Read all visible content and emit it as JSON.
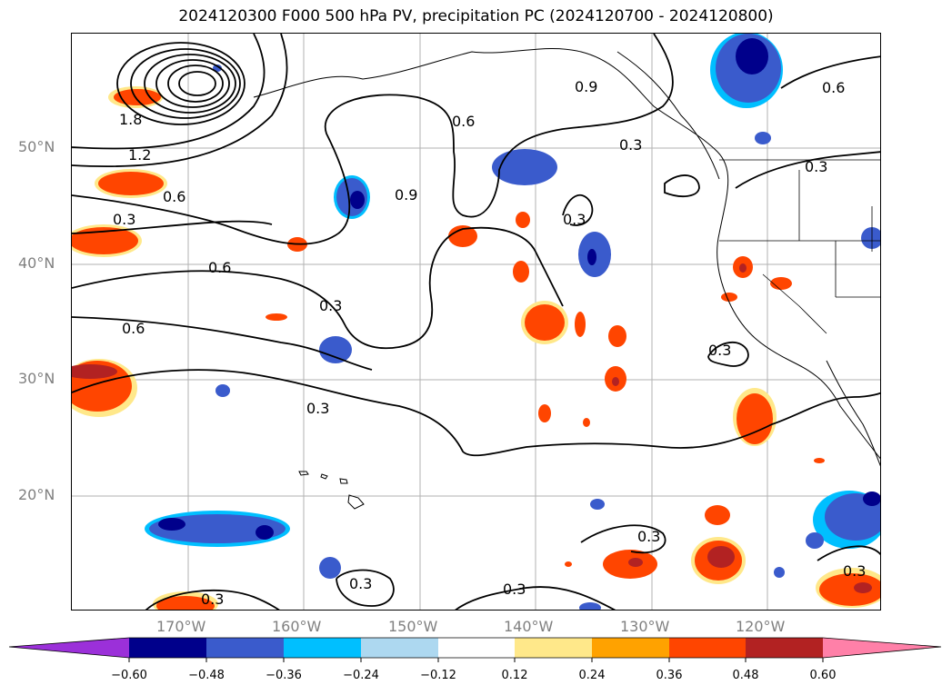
{
  "title": "2024120300 F000 500 hPa PV, precipitation PC (2024120700 - 2024120800)",
  "map": {
    "lat_labels": [
      "50°N",
      "40°N",
      "30°N",
      "20°N"
    ],
    "lon_labels": [
      "170°W",
      "160°W",
      "150°W",
      "140°W",
      "130°W",
      "120°W"
    ],
    "contour_labels": [
      "1.8",
      "1.2",
      "0.6",
      "0.3",
      "0.6",
      "0.6",
      "0.9",
      "0.6",
      "0.3",
      "0.3",
      "0.9",
      "0.3",
      "0.6",
      "0.3",
      "0.3",
      "0.3",
      "0.3",
      "0.3",
      "0.3",
      "0.3",
      "0.3"
    ]
  },
  "colorbar": {
    "ticks": [
      "−0.60",
      "−0.48",
      "−0.36",
      "−0.24",
      "−0.12",
      "0.12",
      "0.24",
      "0.36",
      "0.48",
      "0.60"
    ],
    "colors": [
      "#9b30d9",
      "#00008b",
      "#3a5bcc",
      "#00bfff",
      "#add8f0",
      "#ffffff",
      "#ffe88a",
      "#ffa200",
      "#ff4500",
      "#b22222",
      "#ff80a8"
    ]
  },
  "colors": {
    "contour": "#000000",
    "grid": "#a0a0a0",
    "label_gray": "#808080"
  }
}
